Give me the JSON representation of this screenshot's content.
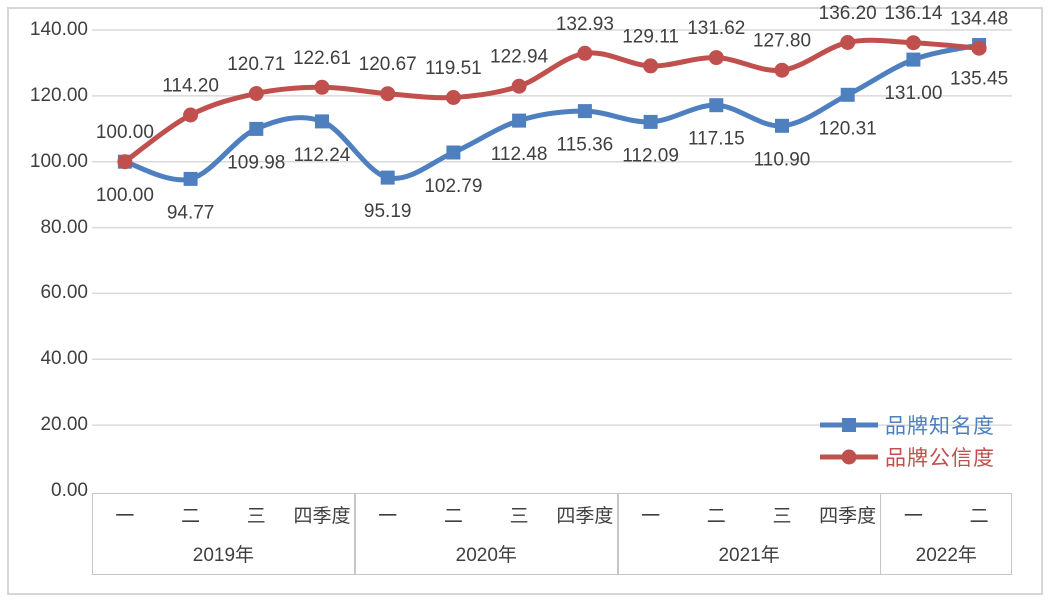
{
  "chart_data": {
    "type": "line",
    "title": "",
    "categories": [
      "一",
      "二",
      "三",
      "四季度",
      "一",
      "二",
      "三",
      "四季度",
      "一",
      "二",
      "三",
      "四季度",
      "一",
      "二"
    ],
    "year_groups": [
      {
        "label": "2019年",
        "span": 4
      },
      {
        "label": "2020年",
        "span": 4
      },
      {
        "label": "2021年",
        "span": 4
      },
      {
        "label": "2022年",
        "span": 2
      }
    ],
    "series": [
      {
        "name": "品牌知名度",
        "color": "#4E7FBE",
        "marker": "square",
        "label_position": "below",
        "values": [
          100.0,
          94.77,
          109.98,
          112.24,
          95.19,
          102.79,
          112.48,
          115.36,
          112.09,
          117.15,
          110.9,
          120.31,
          131.0,
          135.45
        ]
      },
      {
        "name": "品牌公信度",
        "color": "#C0504D",
        "marker": "circle",
        "label_position": "above",
        "values": [
          100.0,
          114.2,
          120.71,
          122.61,
          120.67,
          119.51,
          122.94,
          132.93,
          129.11,
          131.62,
          127.8,
          136.2,
          136.14,
          134.48
        ]
      }
    ],
    "ylim": [
      0,
      140
    ],
    "ytick_step": 20,
    "ytick_labels": [
      "0.00",
      "20.00",
      "40.00",
      "60.00",
      "80.00",
      "100.00",
      "120.00",
      "140.00"
    ],
    "grid": "horizontal-only",
    "legend_position": "middle-right",
    "data_label_format": "0.00",
    "line_style": "smoothed"
  },
  "styles": {
    "grid_color": "#D9D9D9",
    "axis_border_color": "#C6C6C6",
    "frame_color": "#D6D6D6",
    "text_color": "#3F3F3F",
    "series1_color": "#4E7FBE",
    "series2_color": "#C0504D"
  }
}
